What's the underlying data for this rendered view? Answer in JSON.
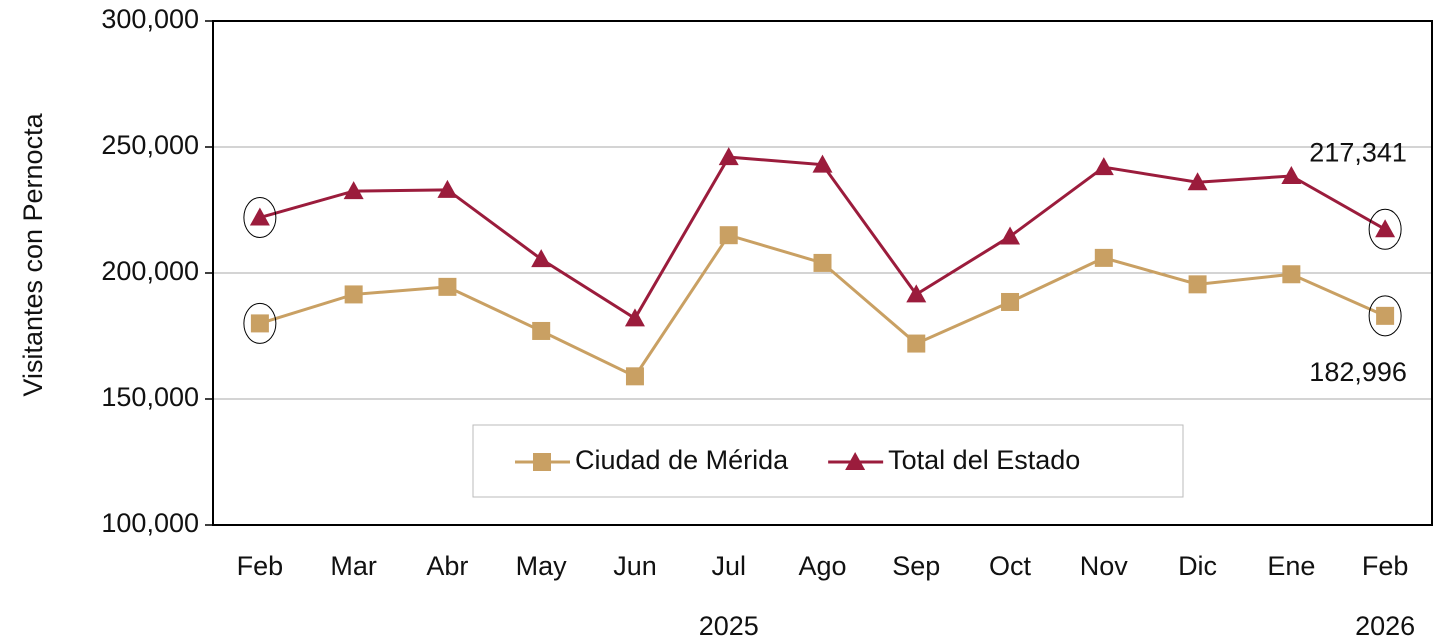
{
  "chart_data": {
    "type": "line",
    "y_axis_label": "Visitantes con Pernocta",
    "categories": [
      "Feb",
      "Mar",
      "Abr",
      "May",
      "Jun",
      "Jul",
      "Ago",
      "Sep",
      "Oct",
      "Nov",
      "Dic",
      "Ene",
      "Feb"
    ],
    "year_labels": [
      "2025",
      "2026"
    ],
    "series": [
      {
        "name": "Ciudad de Mérida",
        "color": "#c9a063",
        "marker": "square",
        "values": [
          180000,
          191500,
          194500,
          177000,
          159000,
          215000,
          204000,
          172000,
          188500,
          206000,
          195500,
          199500,
          182996
        ],
        "value_labels": [
          null,
          null,
          null,
          null,
          null,
          null,
          null,
          null,
          null,
          null,
          null,
          null,
          "182,996"
        ]
      },
      {
        "name": "Total del Estado",
        "color": "#9b1c3c",
        "marker": "triangle",
        "values": [
          222000,
          232500,
          233000,
          205500,
          182000,
          246000,
          243000,
          191500,
          214500,
          242000,
          236000,
          238500,
          217341
        ],
        "value_labels": [
          null,
          null,
          null,
          null,
          null,
          null,
          null,
          null,
          null,
          null,
          null,
          null,
          "217,341"
        ]
      }
    ],
    "ylim": [
      100000,
      300000
    ],
    "yticks": [
      {
        "value": 100000,
        "label": "100,000"
      },
      {
        "value": 150000,
        "label": "150,000"
      },
      {
        "value": 200000,
        "label": "200,000"
      },
      {
        "value": 250000,
        "label": "250,000"
      },
      {
        "value": 300000,
        "label": "300,000"
      }
    ],
    "grid": true,
    "legend": "bottom-center"
  }
}
